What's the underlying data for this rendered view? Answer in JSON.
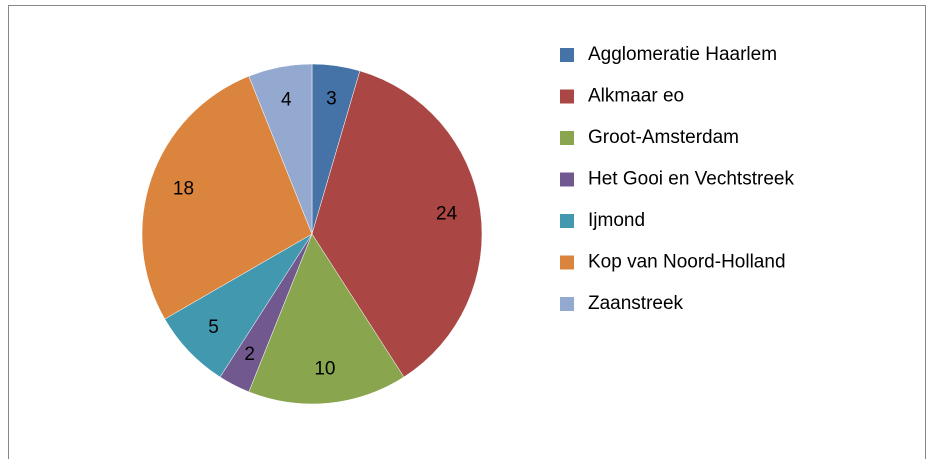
{
  "chart_data": {
    "type": "pie",
    "categories": [
      "Agglomeratie Haarlem",
      "Alkmaar eo",
      "Groot-Amsterdam",
      "Het Gooi en Vechtstreek",
      "Ijmond",
      "Kop van Noord-Holland",
      "Zaanstreek"
    ],
    "values": [
      3,
      24,
      10,
      2,
      5,
      18,
      4
    ],
    "colors": [
      "#4572A7",
      "#AA4643",
      "#89A54E",
      "#71588F",
      "#4198AF",
      "#DB843D",
      "#93A9CF"
    ],
    "legend": "right"
  }
}
